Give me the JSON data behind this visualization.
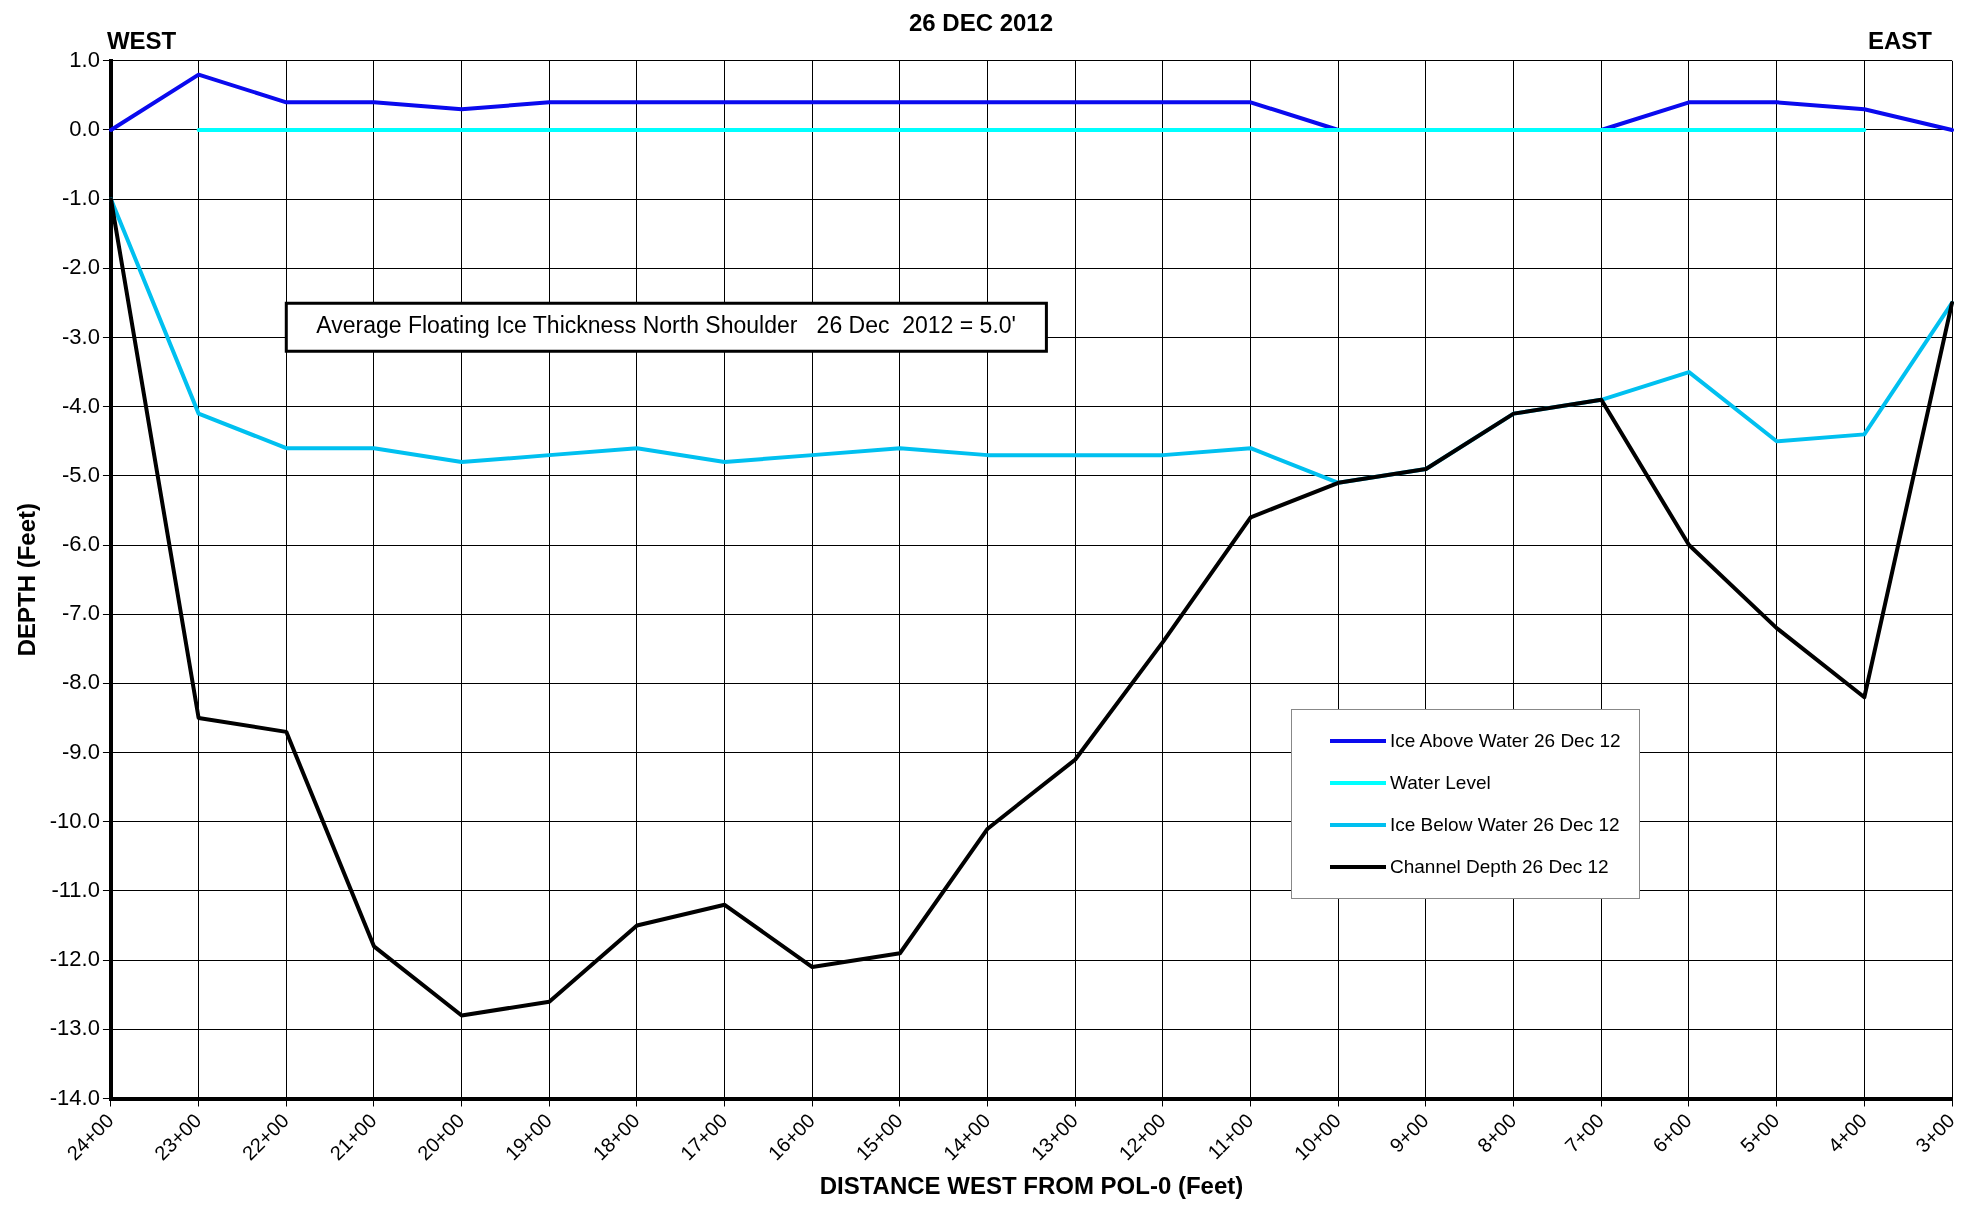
{
  "chart_data": {
    "type": "line",
    "title": "26 DEC 2012",
    "xlabel": "DISTANCE WEST FROM POL-0 (Feet)",
    "ylabel": "DEPTH (Feet)",
    "annotations": [
      "WEST",
      "EAST",
      "Average Floating Ice Thickness North Shoulder   26 Dec  2012 = 5.0'"
    ],
    "categories": [
      "24+00",
      "23+00",
      "22+00",
      "21+00",
      "20+00",
      "19+00",
      "18+00",
      "17+00",
      "16+00",
      "15+00",
      "14+00",
      "13+00",
      "12+00",
      "11+00",
      "10+00",
      "9+00",
      "8+00",
      "7+00",
      "6+00",
      "5+00",
      "4+00",
      "3+00"
    ],
    "series": [
      {
        "name": "Ice Above Water 26 Dec 12",
        "color": "#0a0aee",
        "values": [
          0,
          0.8,
          0.4,
          0.4,
          0.3,
          0.4,
          0.4,
          0.4,
          0.4,
          0.4,
          0.4,
          0.4,
          0.4,
          0.4,
          0,
          0,
          0,
          0,
          0.4,
          0.4,
          0.3,
          0
        ]
      },
      {
        "name": "Water Level",
        "color": "#00ffff",
        "values": [
          null,
          0,
          0,
          0,
          0,
          0,
          0,
          0,
          0,
          0,
          0,
          0,
          0,
          0,
          0,
          0,
          0,
          0,
          0,
          0,
          0,
          null
        ]
      },
      {
        "name": "Ice Below Water 26 Dec 12",
        "color": "#00c0f0",
        "values": [
          -1,
          -4.1,
          -4.6,
          -4.6,
          -4.8,
          -4.7,
          -4.6,
          -4.8,
          -4.7,
          -4.6,
          -4.7,
          -4.7,
          -4.7,
          -4.6,
          -5.1,
          -4.9,
          -4.1,
          -3.9,
          -3.5,
          -4.5,
          -4.4,
          -2.5
        ]
      },
      {
        "name": "Channel Depth 26 Dec 12",
        "color": "#000000",
        "values": [
          -1,
          -8.5,
          -8.7,
          -11.8,
          -12.8,
          -12.6,
          -11.5,
          -11.2,
          -12.1,
          -11.9,
          -10.1,
          -9.1,
          -7.4,
          -5.6,
          -5.1,
          -4.9,
          -4.1,
          -3.9,
          -6,
          -7.2,
          -8.2,
          -2.5
        ]
      }
    ],
    "ylim": [
      -14,
      1
    ],
    "yticks": [
      {
        "value": 1,
        "label": "1.0"
      },
      {
        "value": 0,
        "label": "0.0"
      },
      {
        "value": -1,
        "label": "-1.0"
      },
      {
        "value": -2,
        "label": "-2.0"
      },
      {
        "value": -3,
        "label": "-3.0"
      },
      {
        "value": -4,
        "label": "-4.0"
      },
      {
        "value": -5,
        "label": "-5.0"
      },
      {
        "value": -6,
        "label": "-6.0"
      },
      {
        "value": -7,
        "label": "-7.0"
      },
      {
        "value": -8,
        "label": "-8.0"
      },
      {
        "value": -9,
        "label": "-9.0"
      },
      {
        "value": -10,
        "label": "-10.0"
      },
      {
        "value": -11,
        "label": "-11.0"
      },
      {
        "value": -12,
        "label": "-12.0"
      },
      {
        "value": -13,
        "label": "-13.0"
      },
      {
        "value": -14,
        "label": "-14.0"
      }
    ],
    "grid": true,
    "legend": "bottom right",
    "marker": "none",
    "line_style": "solid"
  }
}
